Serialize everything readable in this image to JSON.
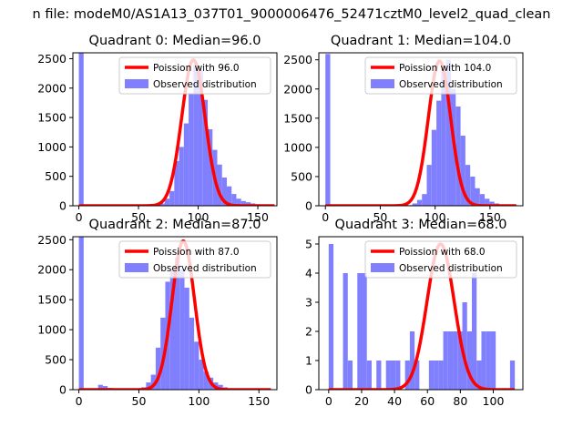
{
  "figure": {
    "suptitle": "n file: modeM0/AS1A13_037T01_9000006476_52471cztM0_level2_quad_clean"
  },
  "colors": {
    "poisson": "#ff0000",
    "observed": "#8080ff",
    "axes": "#000000",
    "background": "#ffffff"
  },
  "chart_data": [
    {
      "type": "bar",
      "title": "Quadrant 0: Median=96.0",
      "xlim": [
        -5,
        166
      ],
      "ylim": [
        0,
        2600
      ],
      "xticks": [
        0,
        50,
        100,
        150
      ],
      "yticks": [
        0,
        500,
        1000,
        1500,
        2000,
        2500
      ],
      "hist": {
        "name": "Observed distribution",
        "start": 0,
        "bin_width": 4,
        "values": [
          2600,
          0,
          0,
          0,
          0,
          0,
          0,
          0,
          0,
          0,
          0,
          0,
          0,
          0,
          0,
          5,
          12,
          40,
          120,
          250,
          760,
          1000,
          1400,
          1900,
          2400,
          2300,
          1800,
          1300,
          950,
          700,
          480,
          330,
          200,
          120,
          80,
          60,
          40,
          25,
          15,
          8,
          4
        ]
      },
      "poisson": {
        "name": "Poission with 96.0",
        "mean": 96.0,
        "peak": 2480,
        "x_range": [
          0,
          164
        ]
      },
      "legend": {
        "loc": "upper right",
        "entries": [
          "Poission with 96.0",
          "Observed distribution"
        ]
      }
    },
    {
      "type": "bar",
      "title": "Quadrant 1: Median=104.0",
      "xlim": [
        -6,
        180
      ],
      "ylim": [
        0,
        2620
      ],
      "xticks": [
        0,
        50,
        100,
        150
      ],
      "yticks": [
        0,
        500,
        1000,
        1500,
        2000,
        2500
      ],
      "hist": {
        "name": "Observed distribution",
        "start": 0,
        "bin_width": 4.4,
        "values": [
          2600,
          0,
          0,
          0,
          0,
          0,
          0,
          0,
          0,
          0,
          0,
          0,
          0,
          0,
          0,
          0,
          0,
          10,
          40,
          100,
          200,
          700,
          1300,
          1800,
          2300,
          2500,
          2000,
          1700,
          1200,
          700,
          500,
          300,
          200,
          120,
          70,
          40,
          20,
          10,
          5,
          2
        ]
      },
      "poisson": {
        "name": "Poission with 104.0",
        "mean": 104.0,
        "peak": 2480,
        "x_range": [
          0,
          174
        ]
      },
      "legend": {
        "loc": "upper right",
        "entries": [
          "Poission with 104.0",
          "Observed distribution"
        ]
      }
    },
    {
      "type": "bar",
      "title": "Quadrant 2: Median=87.0",
      "xlim": [
        -5,
        165
      ],
      "ylim": [
        0,
        2550
      ],
      "xticks": [
        0,
        50,
        100,
        150
      ],
      "yticks": [
        0,
        500,
        1000,
        1500,
        2000,
        2500
      ],
      "hist": {
        "name": "Observed distribution",
        "start": 0,
        "bin_width": 4,
        "values": [
          2550,
          0,
          0,
          0,
          80,
          60,
          30,
          0,
          10,
          20,
          10,
          5,
          20,
          40,
          120,
          250,
          700,
          1200,
          1800,
          2000,
          2200,
          2000,
          1700,
          1200,
          800,
          500,
          300,
          200,
          120,
          80,
          40,
          20,
          10,
          5,
          5,
          2,
          2,
          2,
          2,
          2
        ]
      },
      "poisson": {
        "name": "Poission with 87.0",
        "mean": 87.0,
        "peak": 2480,
        "x_range": [
          0,
          160
        ]
      },
      "legend": {
        "loc": "upper right",
        "entries": [
          "Poission with 87.0",
          "Observed distribution"
        ]
      }
    },
    {
      "type": "bar",
      "title": "Quadrant 3: Median=68.0",
      "xlim": [
        -6,
        118
      ],
      "ylim": [
        0,
        5.25
      ],
      "xticks": [
        0,
        20,
        40,
        60,
        80,
        100
      ],
      "yticks": [
        0,
        1,
        2,
        3,
        4,
        5
      ],
      "hist": {
        "name": "Observed distribution",
        "start": 0,
        "bin_width": 2.9,
        "values": [
          5,
          0,
          0,
          4,
          1,
          0,
          4,
          4,
          1,
          0,
          1,
          0,
          1,
          1,
          1,
          0,
          1,
          2,
          1,
          0,
          0,
          1,
          1,
          1,
          2,
          2,
          2,
          2,
          3,
          2,
          4,
          1,
          2,
          2,
          2,
          0,
          0,
          0,
          1
        ]
      },
      "poisson": {
        "name": "Poission with 68.0",
        "mean": 68.0,
        "peak": 5.0,
        "x_range": [
          0,
          113
        ]
      },
      "legend": {
        "loc": "upper right",
        "entries": [
          "Poission with 68.0",
          "Observed distribution"
        ]
      }
    }
  ]
}
